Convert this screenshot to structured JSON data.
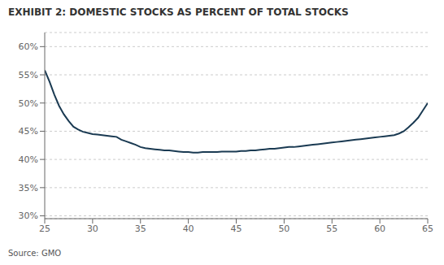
{
  "chart_data": {
    "type": "line",
    "title": "EXHIBIT 2: DOMESTIC STOCKS AS PERCENT OF TOTAL STOCKS",
    "annotations": [
      "Source: GMO"
    ],
    "color": "#1a3a52",
    "grid": "y",
    "xlim": [
      25,
      65
    ],
    "ylim": [
      0.295,
      0.625
    ],
    "xticks": [
      25,
      30,
      35,
      40,
      45,
      50,
      55,
      60,
      65
    ],
    "yticks": [
      {
        "value": 0.3,
        "label": "30%"
      },
      {
        "value": 0.35,
        "label": "35%"
      },
      {
        "value": 0.4,
        "label": "40%"
      },
      {
        "value": 0.45,
        "label": "45%"
      },
      {
        "value": 0.5,
        "label": "50%"
      },
      {
        "value": 0.55,
        "label": "55%"
      },
      {
        "value": 0.6,
        "label": "60%"
      }
    ],
    "x": [
      25,
      25.5,
      26,
      26.5,
      27,
      27.5,
      28,
      28.5,
      29,
      29.5,
      30,
      30.5,
      31,
      31.5,
      32,
      32.5,
      33,
      33.5,
      34,
      34.5,
      35,
      35.5,
      36,
      36.5,
      37,
      37.5,
      38,
      38.5,
      39,
      39.5,
      40,
      40.5,
      41,
      41.5,
      42,
      42.5,
      43,
      43.5,
      44,
      44.5,
      45,
      45.5,
      46,
      46.5,
      47,
      47.5,
      48,
      48.5,
      49,
      49.5,
      50,
      50.5,
      51,
      51.5,
      52,
      52.5,
      53,
      53.5,
      54,
      54.5,
      55,
      55.5,
      56,
      56.5,
      57,
      57.5,
      58,
      58.5,
      59,
      59.5,
      60,
      60.5,
      61,
      61.5,
      62,
      62.5,
      63,
      63.5,
      64,
      64.5,
      65
    ],
    "values": [
      0.558,
      0.538,
      0.515,
      0.495,
      0.48,
      0.468,
      0.458,
      0.453,
      0.449,
      0.447,
      0.445,
      0.444,
      0.443,
      0.442,
      0.441,
      0.44,
      0.435,
      0.432,
      0.429,
      0.426,
      0.422,
      0.42,
      0.419,
      0.418,
      0.417,
      0.416,
      0.416,
      0.415,
      0.414,
      0.413,
      0.413,
      0.412,
      0.412,
      0.413,
      0.413,
      0.413,
      0.413,
      0.414,
      0.414,
      0.414,
      0.414,
      0.415,
      0.415,
      0.416,
      0.416,
      0.417,
      0.418,
      0.419,
      0.419,
      0.42,
      0.421,
      0.422,
      0.422,
      0.423,
      0.424,
      0.425,
      0.426,
      0.427,
      0.428,
      0.429,
      0.43,
      0.431,
      0.432,
      0.433,
      0.434,
      0.435,
      0.436,
      0.437,
      0.438,
      0.439,
      0.44,
      0.441,
      0.442,
      0.443,
      0.446,
      0.45,
      0.457,
      0.465,
      0.474,
      0.487,
      0.5
    ]
  }
}
